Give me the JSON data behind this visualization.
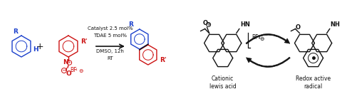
{
  "bg_color": "#ffffff",
  "blue_color": "#1a3fcc",
  "red_color": "#cc1111",
  "black_color": "#111111",
  "catalyst_line1": "Catalyst 2.5 mol%",
  "catalyst_line2": "TDAE 5 mol%",
  "solvent_line": "DMSO, 12h",
  "temp_line": "RT",
  "label_cationic": "Cationic\nlewis acid",
  "label_redox": "Redox active\nradical",
  "font_size_labels": 5.5,
  "font_size_conditions": 5.0
}
